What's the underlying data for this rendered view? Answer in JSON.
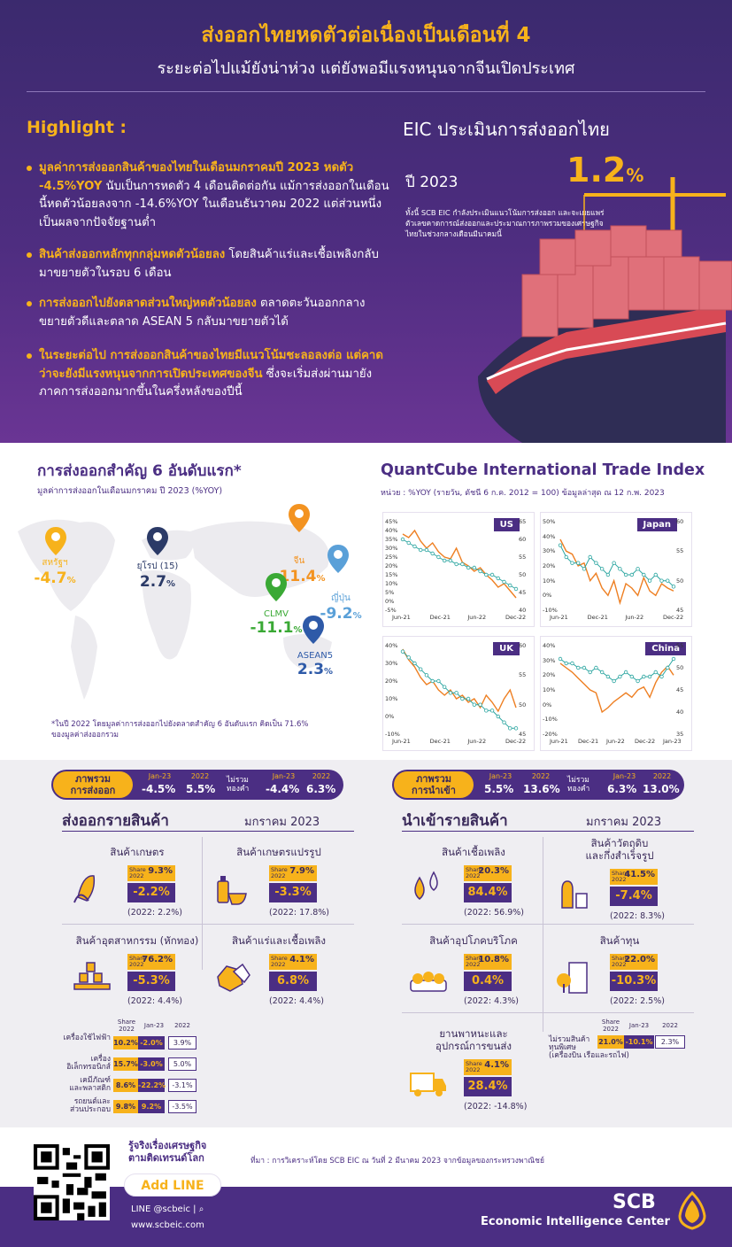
{
  "header": {
    "title": "ส่งออกไทยหดตัวต่อเนื่องเป็นเดือนที่ 4",
    "subtitle": "ระยะต่อไปแม้ยังน่าห่วง แต่ยังพอมีแรงหนุนจากจีนเปิดประเทศ"
  },
  "highlight": {
    "title": "Highlight :",
    "b1": {
      "bold": "มูลค่าการส่งออกสินค้าของไทยในเดือนมกราคมปี 2023 หดตัว -4.5%YOY",
      "rest": " นับเป็นการหดตัว 4 เดือนติดต่อกัน แม้การส่งออกในเดือนนี้หดตัวน้อยลงจาก -14.6%YOY ในเดือนธันวาคม 2022 แต่ส่วนหนึ่งเป็นผลจากปัจจัยฐานต่ำ"
    },
    "b2": {
      "bold": "สินค้าส่งออกหลักทุกกลุ่มหดตัวน้อยลง",
      "rest": " โดยสินค้าแร่และเชื้อเพลิงกลับมาขยายตัวในรอบ 6 เดือน"
    },
    "b3": {
      "bold": "การส่งออกไปยังตลาดส่วนใหญ่หดตัวน้อยลง",
      "rest": " ตลาดตะวันออกกลางขยายตัวดีและตลาด ASEAN 5 กลับมาขยายตัวได้"
    },
    "b4": {
      "bold": "ในระยะต่อไป การส่งออกสินค้าของไทยมีแนวโน้มชะลอลงต่อ แต่คาดว่าจะยังมีแรงหนุนจากการเปิดประเทศของจีน",
      "rest": " ซึ่งจะเริ่มส่งผ่านมายังภาคการส่งออกมากขึ้นในครึ่งหลังของปีนี้"
    }
  },
  "eic": {
    "title": "EIC ประเมินการส่งออกไทย",
    "year": "ปี 2023",
    "value": "1.2",
    "unit": "%",
    "note": "ทั้งนี้ SCB EIC กำลังประเมินแนวโน้มการส่งออก และจะเผยแพร่ตัวเลขคาดการณ์ส่งออกและประมาณการภาพรวมของเศรษฐกิจไทยในช่วงกลางเดือนมีนาคมนี้"
  },
  "top6": {
    "title": "การส่งออกสำคัญ 6 อันดับแรก*",
    "subtitle": "มูลค่าการส่งออกในเดือนมกราคม ปี 2023 (%YOY)",
    "pins": [
      {
        "name": "สหรัฐฯ",
        "value": "-4.7",
        "color": "#f7b21b"
      },
      {
        "name": "ยุโรป (15)",
        "value": "2.7",
        "color": "#2b3a67"
      },
      {
        "name": "จีน",
        "value": "-11.4",
        "color": "#f39321"
      },
      {
        "name": "ญี่ปุ่น",
        "value": "-9.2",
        "color": "#5aa0d8"
      },
      {
        "name": "CLMV",
        "value": "-11.1",
        "color": "#3aa935"
      },
      {
        "name": "ASEAN5",
        "value": "2.3",
        "color": "#2e5aa8"
      }
    ],
    "pct": "%",
    "footnote": "*ในปี 2022 โดยมูลค่าการส่งออกไปยังตลาดสำคัญ 6 อันดับแรก คิดเป็น 71.6% ของมูลค่าส่งออกรวม"
  },
  "chart_data": {
    "type": "line",
    "title": "QuantCube International Trade Index",
    "subtitle": "หน่วย : %YOY (รายวัน, ดัชนี 6 ก.ค. 2012 = 100) ข้อมูลล่าสุด ณ 12 ก.พ. 2023",
    "panels": [
      {
        "name": "US",
        "x_ticks": [
          "Jun-21",
          "Dec-21",
          "Jun-22",
          "Dec-22"
        ],
        "left_axis": [
          "-5%",
          "0%",
          "5%",
          "10%",
          "15%",
          "20%",
          "25%",
          "30%",
          "35%",
          "40%",
          "45%"
        ],
        "right_axis": [
          "40",
          "45",
          "50",
          "55",
          "60",
          "65"
        ],
        "series_orange": [
          38,
          36,
          40,
          34,
          30,
          33,
          28,
          25,
          24,
          30,
          22,
          20,
          17,
          19,
          15,
          12,
          8,
          10,
          6,
          2
        ],
        "series_teal": [
          60,
          59,
          58,
          57,
          57,
          56,
          55,
          54,
          54,
          53,
          53,
          52,
          52,
          51,
          50,
          50,
          49,
          48,
          47,
          46
        ]
      },
      {
        "name": "Japan",
        "x_ticks": [
          "Jun-21",
          "Dec-21",
          "Jun-22",
          "Dec-22"
        ],
        "left_axis": [
          "-10%",
          "0%",
          "10%",
          "20%",
          "30%",
          "40%",
          "50%"
        ],
        "right_axis": [
          "45",
          "50",
          "55",
          "60"
        ],
        "series_orange": [
          38,
          30,
          28,
          20,
          22,
          10,
          15,
          5,
          0,
          10,
          -5,
          8,
          5,
          0,
          12,
          3,
          0,
          8,
          5,
          3
        ],
        "series_teal": [
          56,
          54,
          53,
          53,
          52,
          54,
          53,
          52,
          51,
          53,
          52,
          51,
          51,
          52,
          51,
          50,
          51,
          50,
          50,
          49
        ]
      },
      {
        "name": "UK",
        "x_ticks": [
          "Jun-21",
          "Dec-21",
          "Jun-22",
          "Dec-22"
        ],
        "left_axis": [
          "-10%",
          "0%",
          "10%",
          "20%",
          "30%",
          "40%"
        ],
        "right_axis": [
          "45",
          "50",
          "55",
          "60"
        ],
        "series_orange": [
          38,
          32,
          28,
          22,
          18,
          20,
          15,
          12,
          15,
          10,
          12,
          8,
          10,
          5,
          12,
          8,
          3,
          10,
          15,
          5
        ],
        "series_teal": [
          59,
          58,
          57,
          56,
          55,
          54,
          54,
          53,
          52,
          52,
          51,
          51,
          50,
          50,
          49,
          49,
          48,
          47,
          46,
          46
        ]
      },
      {
        "name": "China",
        "x_ticks": [
          "Jun-21",
          "Dec-21",
          "Jun-22",
          "Dec-22",
          "Jan-23"
        ],
        "left_axis": [
          "-20%",
          "-10%",
          "0%",
          "10%",
          "20%",
          "30%",
          "40%"
        ],
        "right_axis": [
          "35",
          "40",
          "45",
          "50",
          "55"
        ],
        "series_orange": [
          28,
          25,
          22,
          18,
          14,
          10,
          8,
          -5,
          -2,
          2,
          5,
          8,
          5,
          10,
          12,
          5,
          15,
          22,
          26,
          20
        ],
        "series_teal": [
          52,
          51,
          51,
          50,
          50,
          49,
          50,
          49,
          48,
          47,
          48,
          49,
          48,
          47,
          48,
          48,
          49,
          48,
          50,
          52
        ]
      }
    ]
  },
  "exports_pill": {
    "label": "ภาพรวม\nการส่งออก",
    "h1": "Jan-23",
    "h2": "2022",
    "v1": "-4.5%",
    "v2": "5.5%",
    "ex": "ไม่รวม\nทองคำ",
    "h3": "Jan-23",
    "h4": "2022",
    "v3": "-4.4%",
    "v4": "6.3%"
  },
  "imports_pill": {
    "label": "ภาพรวม\nการนำเข้า",
    "h1": "Jan-23",
    "h2": "2022",
    "v1": "5.5%",
    "v2": "13.6%",
    "ex": "ไม่รวม\nทองคำ",
    "h3": "Jan-23",
    "h4": "2022",
    "v3": "6.3%",
    "v4": "13.0%"
  },
  "exports": {
    "title": "ส่งออกรายสินค้า",
    "month": "มกราคม 2023",
    "share_lbl": "Share\n2022",
    "items": [
      {
        "name": "สินค้าเกษตร",
        "share": "9.3%",
        "value": "-2.2%",
        "prev": "(2022: 2.2%)"
      },
      {
        "name": "สินค้าเกษตรแปรรูป",
        "share": "7.9%",
        "value": "-3.3%",
        "prev": "(2022: 17.8%)"
      },
      {
        "name": "สินค้าอุตสาหกรรม (หักทอง)",
        "share": "76.2%",
        "value": "-5.3%",
        "prev": "(2022: 4.4%)"
      },
      {
        "name": "สินค้าแร่และเชื้อเพลิง",
        "share": "4.1%",
        "value": "6.8%",
        "prev": "(2022: 4.4%)"
      }
    ],
    "sub_head": {
      "share": "Share\n2022",
      "jan": "Jan-23",
      "y2022": "2022"
    },
    "sub": [
      {
        "name": "เครื่องใช้ไฟฟ้า",
        "share": "10.2%",
        "jan": "-2.0%",
        "y": "3.9%"
      },
      {
        "name": "เครื่อง\nอิเล็กทรอนิกส์",
        "share": "15.7%",
        "jan": "-3.0%",
        "y": "5.0%"
      },
      {
        "name": "เคมีภัณฑ์\nและพลาสติก",
        "share": "8.6%",
        "jan": "-22.2%",
        "y": "-3.1%"
      },
      {
        "name": "รถยนต์และ\nส่วนประกอบ",
        "share": "9.8%",
        "jan": "9.2%",
        "y": "-3.5%"
      }
    ]
  },
  "imports": {
    "title": "นำเข้ารายสินค้า",
    "month": "มกราคม 2023",
    "share_lbl": "Share\n2022",
    "items": [
      {
        "name": "สินค้าเชื้อเพลิง",
        "share": "20.3%",
        "value": "84.4%",
        "prev": "(2022: 56.9%)"
      },
      {
        "name": "สินค้าวัตถุดิบ\nและกึ่งสำเร็จรูป",
        "share": "41.5%",
        "value": "-7.4%",
        "prev": "(2022: 8.3%)"
      },
      {
        "name": "สินค้าอุปโภคบริโภค",
        "share": "10.8%",
        "value": "0.4%",
        "prev": "(2022: 4.3%)"
      },
      {
        "name": "สินค้าทุน",
        "share": "22.0%",
        "value": "-10.3%",
        "prev": "(2022: 2.5%)"
      },
      {
        "name": "ยานพาหนะและ\nอุปกรณ์การขนส่ง",
        "share": "4.1%",
        "value": "28.4%",
        "prev": "(2022: -14.8%)"
      }
    ],
    "sub_head": {
      "share": "Share\n2022",
      "jan": "Jan-23",
      "y2022": "2022"
    },
    "sub": {
      "name": "ไม่รวมสินค้า\nทุนพิเศษ\n(เครื่องบิน เรือและรถไฟ)",
      "share": "21.0%",
      "jan": "-10.1%",
      "y": "2.3%"
    }
  },
  "footer": {
    "tag1": "รู้จริงเรื่องเศรษฐกิจ",
    "tag2": "ตามติดเทรนด์โลก",
    "addline": "Add LINE",
    "line": "LINE @scbeic |",
    "web": "www.scbeic.com",
    "source": "ที่มา : การวิเคราะห์โดย SCB EIC ณ วันที่ 2 มีนาคม 2023 จากข้อมูลของกระทรวงพาณิชย์",
    "brand": "SCB",
    "brand_sub": "Economic Intelligence Center"
  },
  "colors": {
    "purple": "#4b2e83",
    "gold": "#f7b21b",
    "orange": "#ee7f22",
    "teal": "#2aa5a0"
  }
}
